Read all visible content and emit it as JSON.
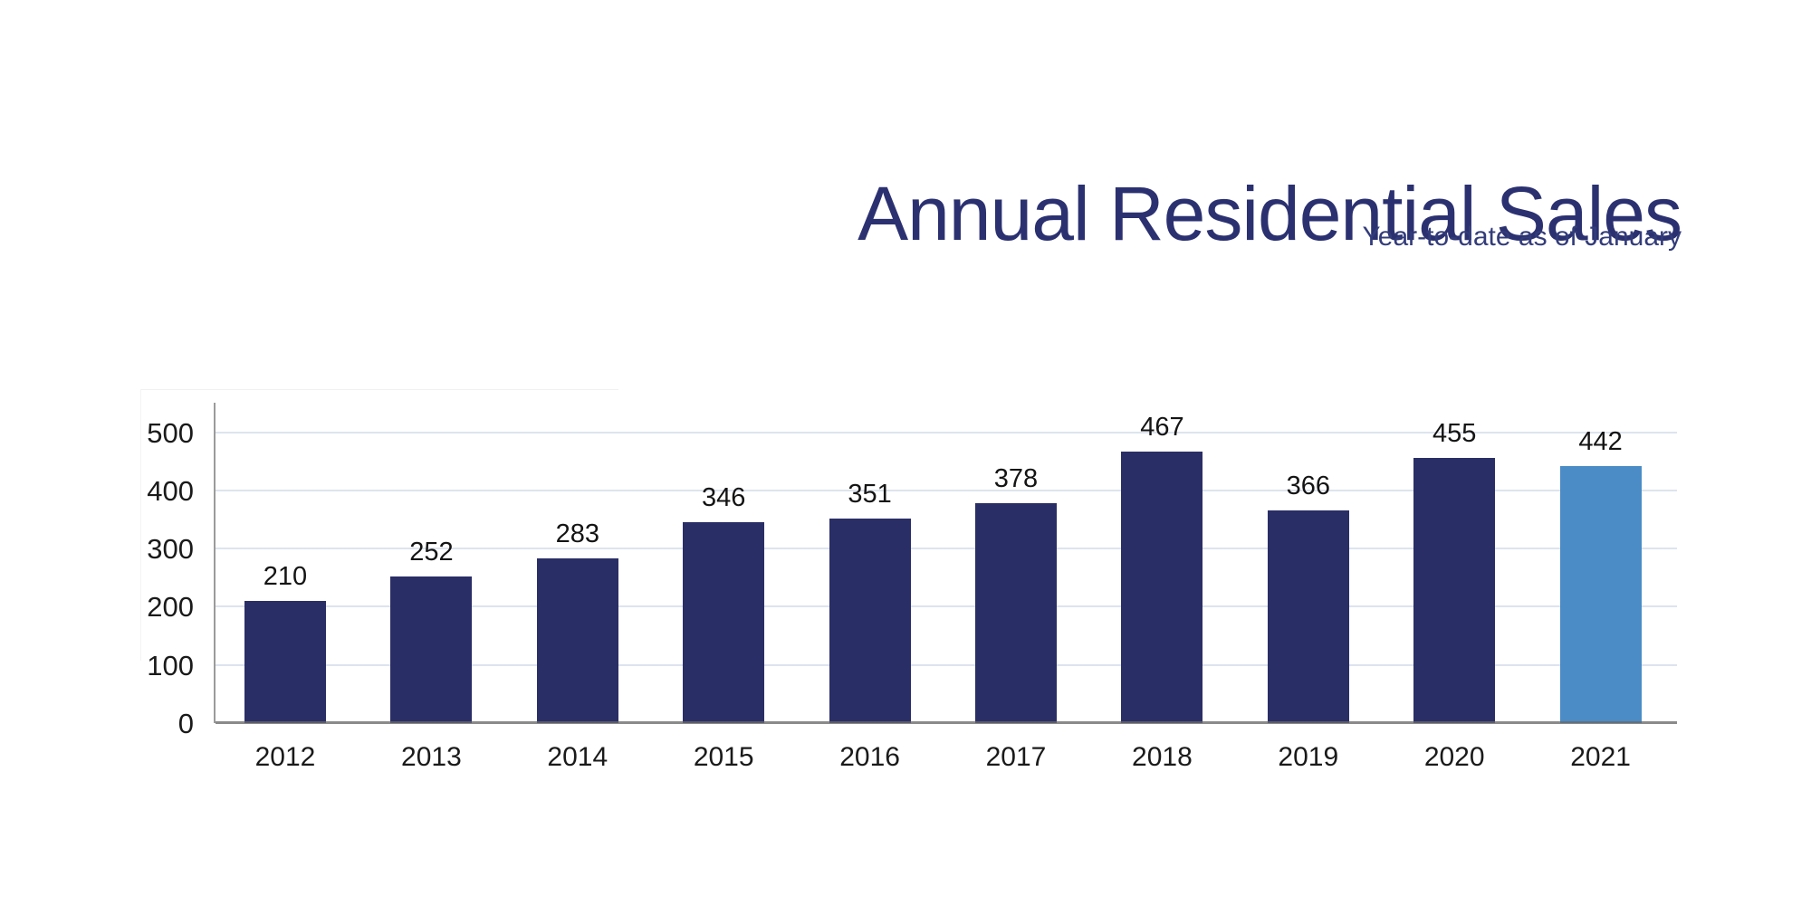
{
  "header": {
    "title": "Annual Residential Sales",
    "subtitle": "Year-to-date as of January",
    "title_color": "#2B3170",
    "subtitle_color": "#333C7A"
  },
  "chart_data": {
    "type": "bar",
    "title": "Annual Residential Sales",
    "subtitle": "Year-to-date as of January",
    "categories": [
      "2012",
      "2013",
      "2014",
      "2015",
      "2016",
      "2017",
      "2018",
      "2019",
      "2020",
      "2021"
    ],
    "values": [
      210,
      252,
      283,
      346,
      351,
      378,
      467,
      366,
      455,
      442
    ],
    "data_labels": [
      "210",
      "252",
      "283",
      "346",
      "351",
      "378",
      "467",
      "366",
      "455",
      "442"
    ],
    "highlight_index": 9,
    "bar_color_default": "#2A2E66",
    "bar_color_highlight": "#4B8CC6",
    "y_ticks": [
      0,
      100,
      200,
      300,
      400,
      500
    ],
    "ylim": [
      0,
      550
    ],
    "xlabel": "",
    "ylabel": "",
    "grid": true,
    "gridline_color": "#dde4ee",
    "legend": "none",
    "label_color": "#141414"
  }
}
